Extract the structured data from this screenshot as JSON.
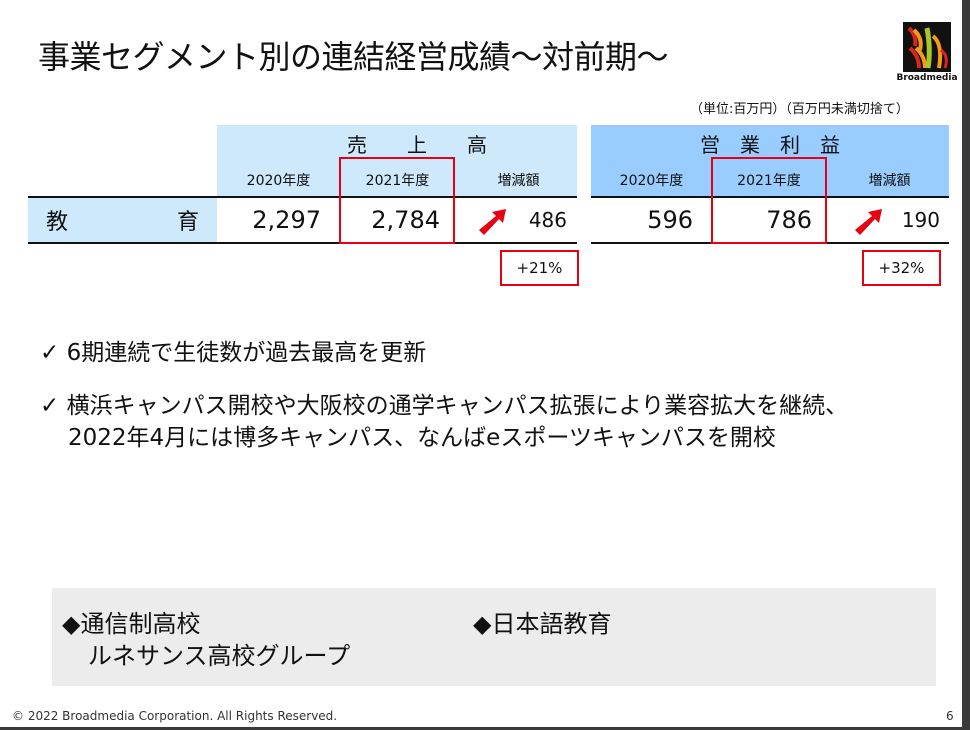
{
  "title": "事業セグメント別の連結経営成績～対前期～",
  "logo": {
    "text": "Broadmedia"
  },
  "unit_note": "（単位:百万円）（百万円未満切捨て）",
  "table": {
    "sales": {
      "header": "売　　上　　高",
      "col_prev": "2020年度",
      "col_curr": "2021年度",
      "col_diff": "増減額",
      "prev": "2,297",
      "curr": "2,784",
      "diff": "486",
      "pct": "+21%"
    },
    "profit": {
      "header": "営　業　利　益",
      "col_prev": "2020年度",
      "col_curr": "2021年度",
      "col_diff": "増減額",
      "prev": "596",
      "curr": "786",
      "diff": "190",
      "pct": "+32%"
    },
    "row_label_1": "教",
    "row_label_2": "育"
  },
  "bullets": [
    {
      "check": "✓",
      "text": "6期連続で生徒数が過去最高を更新"
    },
    {
      "check": "✓",
      "line1": "横浜キャンパス開校や大阪校の通学キャンパス拡張により業容拡大を継続、",
      "line2": "2022年4月には博多キャンパス、なんばeスポーツキャンパスを開校"
    }
  ],
  "box": {
    "left_line1": "◆通信制高校",
    "left_line2": "ルネサンス高校グループ",
    "right_line1": "◆日本語教育"
  },
  "footer": {
    "copyright": "© 2022 Broadmedia Corporation. All Rights Reserved.",
    "page": "6"
  },
  "colors": {
    "sales_header": "#cde9fb",
    "profit_header": "#99ccff",
    "highlight": "#e60012"
  }
}
